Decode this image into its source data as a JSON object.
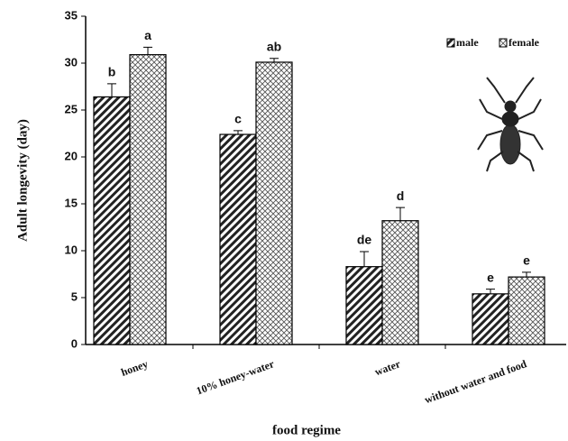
{
  "chart_data": {
    "type": "bar",
    "xlabel": "food regime",
    "ylabel": "Adult longevity (day)",
    "categories": [
      "honey",
      "10% honey-water",
      "water",
      "without water and food"
    ],
    "series": [
      {
        "name": "male",
        "color": "#222222",
        "values": [
          26.4,
          22.4,
          8.3,
          5.4
        ],
        "errors": [
          1.4,
          0.4,
          1.6,
          0.5
        ],
        "letters": [
          "b",
          "c",
          "de",
          "e"
        ]
      },
      {
        "name": "female",
        "color": "#555555",
        "values": [
          30.9,
          30.1,
          13.2,
          7.2
        ],
        "errors": [
          0.8,
          0.4,
          1.4,
          0.5
        ],
        "letters": [
          "a",
          "ab",
          "d",
          "e"
        ]
      }
    ],
    "ylim": [
      0,
      35
    ],
    "yticks": [
      0,
      5,
      10,
      15,
      20,
      25,
      30,
      35
    ],
    "grid": false,
    "legend": "upper right"
  }
}
